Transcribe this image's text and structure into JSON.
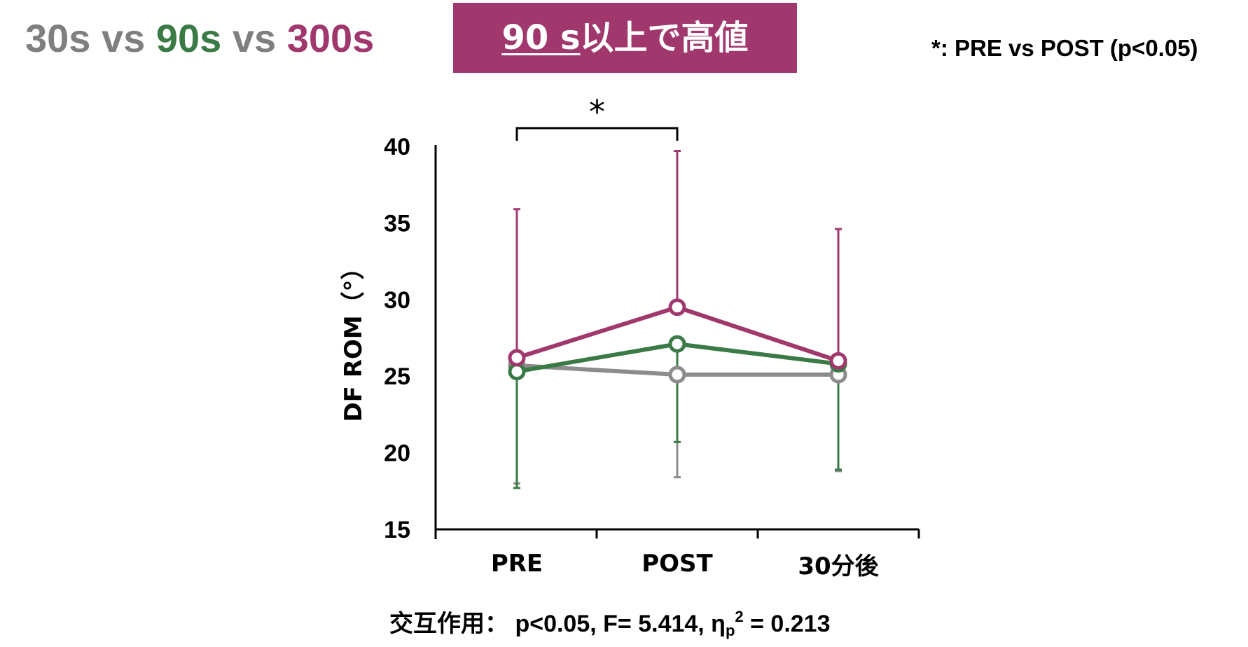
{
  "title": {
    "parts": [
      {
        "text": "30s",
        "color": "#7f7f7f"
      },
      {
        "text": " vs ",
        "color": "#7f7f7f"
      },
      {
        "text": "90s",
        "color": "#3a7a45"
      },
      {
        "text": " vs ",
        "color": "#7f7f7f"
      },
      {
        "text": "300s",
        "color": "#a0376d"
      }
    ]
  },
  "banner": {
    "underlined_text": "90 s",
    "rest_text": "以上で高値",
    "background": "#a0376d",
    "text_color": "#ffffff"
  },
  "significance_note": "*: PRE vs POST (p<0.05)",
  "footer": {
    "label": "交互作用：",
    "stats_before": " p<0.05, F= 5.414, η",
    "subscript": "p",
    "superscript": "2",
    "stats_after": " = 0.213"
  },
  "chart_data": {
    "type": "line",
    "categories": [
      "PRE",
      "POST",
      "30分後"
    ],
    "ylabel": "DF ROM（°）",
    "xlabel": "",
    "ylim": [
      15,
      40
    ],
    "yticks": [
      15,
      20,
      25,
      30,
      35,
      40
    ],
    "grid": false,
    "series": [
      {
        "color": "#8c8c8c",
        "values": [
          25.7,
          25.1,
          25.1
        ],
        "error_low": [
          18.0,
          18.4,
          18.8
        ],
        "error_high": [
          null,
          null,
          null
        ]
      },
      {
        "color": "#3a7a45",
        "values": [
          25.3,
          27.1,
          25.8
        ],
        "error_low": [
          17.7,
          20.7,
          18.9
        ],
        "error_high": [
          null,
          null,
          null
        ]
      },
      {
        "color": "#a0376d",
        "values": [
          26.2,
          29.5,
          26.0
        ],
        "error_low": [
          null,
          null,
          null
        ],
        "error_high": [
          35.9,
          39.7,
          34.6
        ]
      }
    ],
    "significance": {
      "from": "PRE",
      "to": "POST",
      "marker": "*"
    }
  }
}
